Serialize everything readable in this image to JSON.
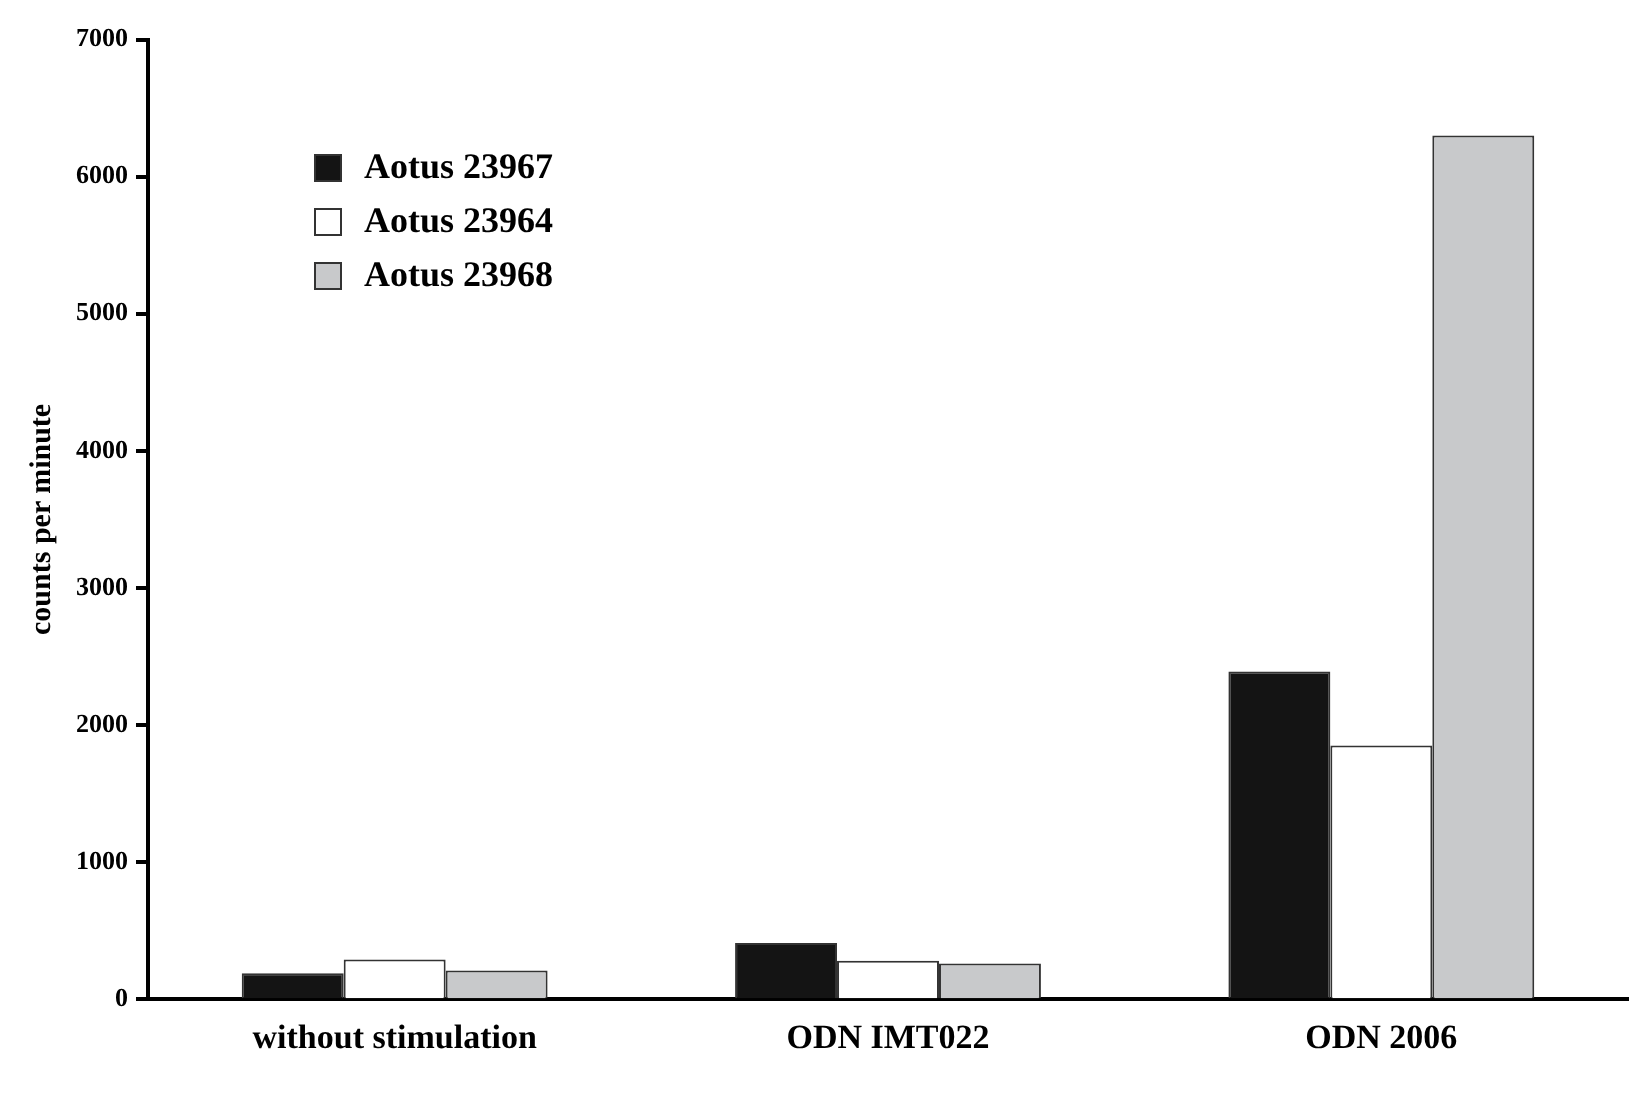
{
  "chart_data": {
    "type": "bar",
    "ylabel": "counts per minute",
    "categories": [
      "without stimulation",
      "ODN IMT022",
      "ODN 2006"
    ],
    "series": [
      {
        "name": "Aotus 23967",
        "color": "#141414",
        "values": [
          190,
          410,
          2390
        ]
      },
      {
        "name": "Aotus 23964",
        "color": "#ffffff",
        "values": [
          290,
          280,
          1850
        ]
      },
      {
        "name": "Aotus 23968",
        "color": "#c8c9cb",
        "values": [
          210,
          260,
          6300
        ]
      }
    ],
    "ylim": [
      0,
      7000
    ],
    "yticks": [
      0,
      1000,
      2000,
      3000,
      4000,
      5000,
      6000,
      7000
    ],
    "grid": false,
    "legend": "top left"
  }
}
